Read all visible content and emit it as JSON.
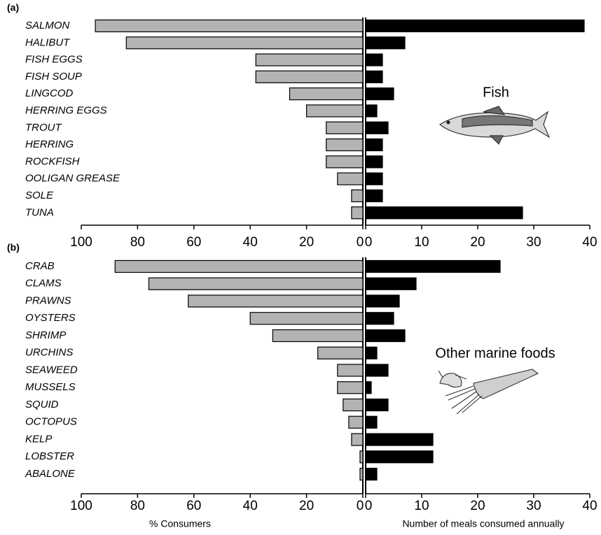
{
  "chart_data": [
    {
      "type": "bar",
      "orientation": "horizontal",
      "label": "(a)",
      "annotation": "Fish",
      "categories": [
        "SALMON",
        "HALIBUT",
        "FISH EGGS",
        "FISH SOUP",
        "LINGCOD",
        "HERRING EGGS",
        "TROUT",
        "HERRING",
        "ROCKFISH",
        "OOLIGAN GREASE",
        "SOLE",
        "TUNA"
      ],
      "series": [
        {
          "color": "#b3b3b3",
          "axis": "x",
          "values": [
            95,
            84,
            38,
            38,
            26,
            20,
            13,
            13,
            13,
            9,
            4,
            4
          ]
        },
        {
          "color": "#000000",
          "axis": "x2",
          "values": [
            39,
            7,
            3,
            3,
            5,
            2,
            4,
            3,
            3,
            3,
            3,
            28
          ]
        }
      ],
      "xlim": [
        100,
        0
      ],
      "xticks": [
        100,
        80,
        60,
        40,
        20,
        0
      ],
      "x2lim": [
        0,
        40
      ],
      "x2ticks": [
        0,
        10,
        20,
        30,
        40
      ]
    },
    {
      "type": "bar",
      "orientation": "horizontal",
      "label": "(b)",
      "annotation": "Other marine foods",
      "categories": [
        "CRAB",
        "CLAMS",
        "PRAWNS",
        "OYSTERS",
        "SHRIMP",
        "URCHINS",
        "SEAWEED",
        "MUSSELS",
        "SQUID",
        "OCTOPUS",
        "KELP",
        "LOBSTER",
        "ABALONE"
      ],
      "series": [
        {
          "color": "#b3b3b3",
          "axis": "x",
          "values": [
            88,
            76,
            62,
            40,
            32,
            16,
            9,
            9,
            7,
            5,
            4,
            1,
            1
          ]
        },
        {
          "color": "#000000",
          "axis": "x2",
          "values": [
            24,
            9,
            6,
            5,
            7,
            2,
            4,
            1,
            4,
            2,
            12,
            12,
            2
          ]
        }
      ],
      "xlim": [
        100,
        0
      ],
      "xticks": [
        100,
        80,
        60,
        40,
        20,
        0
      ],
      "x2lim": [
        0,
        40
      ],
      "x2ticks": [
        0,
        10,
        20,
        30,
        40
      ],
      "xlabel": "% Consumers",
      "x2label": "Number of meals consumed annually"
    }
  ]
}
